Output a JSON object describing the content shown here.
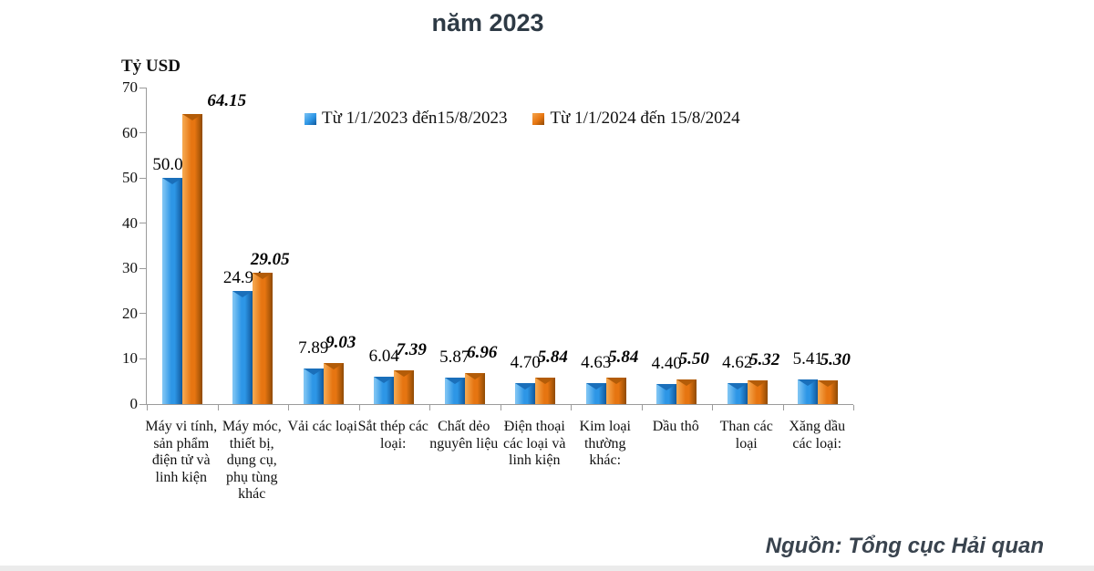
{
  "title": "năm 2023",
  "y_axis_title": "Tỷ USD",
  "source": "Nguồn: Tổng cục Hải quan",
  "legend": [
    {
      "label": "Từ 1/1/2023 đến15/8/2023"
    },
    {
      "label": "Từ 1/1/2024 đến 15/8/2024"
    }
  ],
  "chart_data": {
    "type": "bar",
    "title": "năm 2023",
    "ylabel": "Tỷ USD",
    "ylim": [
      0,
      70
    ],
    "ytick_step": 10,
    "grid": false,
    "legend_position": "top-center",
    "value_labels": "outside-end, 2 decimals; 2024 series bold italic",
    "categories": [
      "Máy vi tính, sản phẩm điện tử và linh kiện",
      "Máy móc, thiết bị, dụng cụ, phụ tùng khác",
      "Vải các loại",
      "Sắt thép các loại:",
      "Chất dẻo nguyên liệu",
      "Điện thoại các loại và linh kiện",
      "Kim loại thường khác:",
      "Dầu thô",
      "Than các loại",
      "Xăng dầu các loại:"
    ],
    "series": [
      {
        "name": "Từ 1/1/2023 đến15/8/2023",
        "color": "#2d96e6",
        "shades": {
          "light": "#7cc3f3",
          "base": "#2d96e6",
          "dark": "#10589c",
          "notch": "#1a6fba"
        },
        "values": [
          50.04,
          24.94,
          7.89,
          6.04,
          5.87,
          4.7,
          4.63,
          4.4,
          4.62,
          5.41
        ]
      },
      {
        "name": "Từ 1/1/2024 đến 15/8/2024",
        "color": "#e67511",
        "shades": {
          "light": "#f5a54c",
          "base": "#e67511",
          "dark": "#8f4a04",
          "notch": "#b35c08"
        },
        "values": [
          64.15,
          29.05,
          9.03,
          7.39,
          6.96,
          5.84,
          5.84,
          5.5,
          5.32,
          5.3
        ]
      }
    ]
  }
}
